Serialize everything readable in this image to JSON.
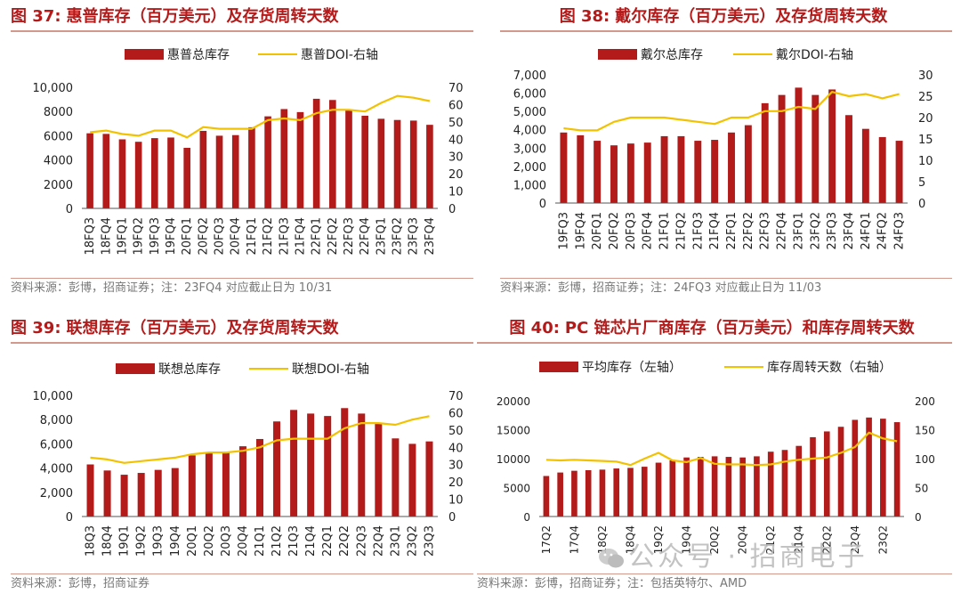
{
  "chart_data": [
    {
      "type": "bar+line",
      "fig_label": "图 37:",
      "title": "惠普库存（百万美元）及存货周转天数",
      "legend": [
        "惠普总库存",
        "惠普DOI-右轴"
      ],
      "categories": [
        "18FQ3",
        "18FQ4",
        "19FQ1",
        "19FQ2",
        "19FQ3",
        "19FQ4",
        "20FQ1",
        "20FQ2",
        "20FQ3",
        "20FQ4",
        "21FQ1",
        "21FQ2",
        "21FQ3",
        "21FQ4",
        "22FQ1",
        "22FQ2",
        "22FQ3",
        "22FQ4",
        "23FQ1",
        "23FQ2",
        "23FQ3",
        "23FQ4"
      ],
      "series": [
        {
          "name": "惠普总库存",
          "axis": "left",
          "type": "bar",
          "values": [
            6200,
            6150,
            5700,
            5500,
            5800,
            5850,
            5000,
            6400,
            6000,
            6050,
            6700,
            7600,
            8200,
            7950,
            9050,
            8950,
            8150,
            7650,
            7400,
            7300,
            7250,
            6900
          ]
        },
        {
          "name": "惠普DOI-右轴",
          "axis": "right",
          "type": "line",
          "values": [
            44,
            45,
            43,
            42,
            45,
            45,
            41,
            47,
            46,
            46,
            46,
            51,
            52,
            51,
            55,
            57,
            57,
            56,
            61,
            65,
            64,
            62
          ]
        }
      ],
      "yleft": {
        "min": 0,
        "max": 10000,
        "step": 2000,
        "ticks": [
          "0",
          "2000",
          "4000",
          "6000",
          "8000",
          "10,000"
        ]
      },
      "yright": {
        "min": 0,
        "max": 70,
        "step": 10,
        "ticks": [
          "0",
          "10",
          "20",
          "30",
          "40",
          "50",
          "60",
          "70"
        ]
      },
      "source": "资料来源：彭博，招商证券；注：23FQ4 对应截止日为 10/31"
    },
    {
      "type": "bar+line",
      "fig_label": "图 38:",
      "title": "戴尔库存（百万美元）及存货周转天数",
      "legend": [
        "戴尔总库存",
        "戴尔DOI-右轴"
      ],
      "categories": [
        "19FQ3",
        "19FQ4",
        "20FQ1",
        "20FQ2",
        "20FQ3",
        "20FQ4",
        "21FQ1",
        "21FQ2",
        "21FQ3",
        "21FQ4",
        "22FQ1",
        "22FQ2",
        "22FQ3",
        "22FQ4",
        "23FQ1",
        "23FQ2",
        "23FQ3",
        "23FQ4",
        "24FQ1",
        "24FQ2",
        "24FQ3"
      ],
      "series": [
        {
          "name": "戴尔总库存",
          "axis": "left",
          "type": "bar",
          "values": [
            3850,
            3700,
            3400,
            3150,
            3250,
            3300,
            3650,
            3650,
            3400,
            3450,
            3850,
            4250,
            5450,
            5900,
            6300,
            5900,
            6200,
            4800,
            4050,
            3600,
            3400
          ]
        },
        {
          "name": "戴尔DOI-右轴",
          "axis": "right",
          "type": "line",
          "values": [
            17.5,
            17,
            17,
            19,
            20,
            20,
            20,
            19.5,
            19,
            18.5,
            20,
            20,
            21.5,
            21.5,
            22.5,
            22,
            26,
            25,
            25.5,
            24.5,
            25.5
          ]
        }
      ],
      "yleft": {
        "min": 0,
        "max": 7000,
        "step": 1000,
        "ticks": [
          "0",
          "1,000",
          "2,000",
          "3,000",
          "4,000",
          "5,000",
          "6,000",
          "7,000"
        ]
      },
      "yright": {
        "min": 0,
        "max": 30,
        "step": 5,
        "ticks": [
          "0",
          "5",
          "10",
          "15",
          "20",
          "25",
          "30"
        ]
      },
      "source": "资料来源：彭博，招商证券；注：24FQ3 对应截止日为 11/03"
    },
    {
      "type": "bar+line",
      "fig_label": "图 39:",
      "title": "联想库存（百万美元）及存货周转天数",
      "legend": [
        "联想总库存",
        "联想DOI-右轴"
      ],
      "categories": [
        "18Q3",
        "18Q4",
        "19Q1",
        "19Q2",
        "19Q3",
        "19Q4",
        "20Q1",
        "20Q2",
        "20Q3",
        "20Q4",
        "21Q1",
        "21Q2",
        "21Q3",
        "21Q4",
        "22Q1",
        "22Q2",
        "22Q3",
        "22Q4",
        "23Q1",
        "23Q2",
        "23Q3"
      ],
      "series": [
        {
          "name": "联想总库存",
          "axis": "left",
          "type": "bar",
          "values": [
            4300,
            3800,
            3450,
            3600,
            3850,
            4000,
            5050,
            5250,
            5350,
            5800,
            6400,
            7850,
            8800,
            8500,
            8300,
            8950,
            8500,
            7750,
            6450,
            6000,
            6200
          ]
        },
        {
          "name": "联想DOI-右轴",
          "axis": "right",
          "type": "line",
          "values": [
            34,
            33,
            31,
            32,
            33,
            34,
            36,
            37,
            37,
            38,
            40,
            44,
            45,
            45,
            45,
            51,
            54,
            54,
            53,
            56,
            58
          ]
        }
      ],
      "yleft": {
        "min": 0,
        "max": 10000,
        "step": 2000,
        "ticks": [
          "0",
          "2,000",
          "4,000",
          "6,000",
          "8,000",
          "10,000"
        ]
      },
      "yright": {
        "min": 0,
        "max": 70,
        "step": 10,
        "ticks": [
          "0",
          "10",
          "20",
          "30",
          "40",
          "50",
          "60",
          "70"
        ]
      },
      "source": "资料来源：彭博，招商证券"
    },
    {
      "type": "bar+line",
      "fig_label": "图 40:",
      "title": "PC 链芯片厂商库存（百万美元）和库存周转天数",
      "legend": [
        "平均库存（左轴）",
        "库存周转天数（右轴）"
      ],
      "categories": [
        "17Q2",
        "17Q3",
        "17Q4",
        "18Q1",
        "18Q2",
        "18Q3",
        "18Q4",
        "19Q1",
        "19Q2",
        "19Q3",
        "19Q4",
        "20Q1",
        "20Q2",
        "20Q3",
        "20Q4",
        "21Q1",
        "21Q2",
        "21Q3",
        "21Q4",
        "22Q1",
        "22Q2",
        "22Q3",
        "22Q4",
        "23Q1",
        "23Q2",
        "23Q3"
      ],
      "xlabels_shown": [
        "17Q2",
        "17Q4",
        "18Q2",
        "18Q4",
        "19Q2",
        "19Q4",
        "20Q2",
        "20Q4",
        "21Q2",
        "21Q4",
        "22Q2",
        "22Q4",
        "23Q2"
      ],
      "series": [
        {
          "name": "平均库存（左轴）",
          "axis": "left",
          "type": "bar",
          "values": [
            7000,
            7600,
            7900,
            8000,
            8100,
            8300,
            8400,
            8600,
            9300,
            9700,
            10200,
            10300,
            10400,
            10300,
            10200,
            10400,
            11200,
            11500,
            12200,
            13700,
            14700,
            15500,
            16700,
            17100,
            16900,
            16300
          ]
        },
        {
          "name": "库存周转天数（右轴）",
          "axis": "right",
          "type": "line",
          "values": [
            98,
            97,
            98,
            97,
            96,
            95,
            89,
            100,
            110,
            97,
            94,
            101,
            91,
            90,
            90,
            89,
            90,
            95,
            98,
            100,
            102,
            110,
            120,
            145,
            135,
            130
          ]
        }
      ],
      "yleft": {
        "min": 0,
        "max": 20000,
        "step": 5000,
        "ticks": [
          "0",
          "5000",
          "10000",
          "15000",
          "20000"
        ]
      },
      "yright": {
        "min": 0,
        "max": 200,
        "step": 50,
        "ticks": [
          "0",
          "50",
          "100",
          "150",
          "200"
        ]
      },
      "source": "资料来源：彭博，招商证券；注：包括英特尔、AMD"
    }
  ],
  "colors": {
    "bar": "#b31b1b",
    "line": "#f2c200",
    "title": "#b31b1b",
    "rule": "#d29a8c",
    "axis": "#444444"
  },
  "watermark": "公众号 · 招商电子"
}
